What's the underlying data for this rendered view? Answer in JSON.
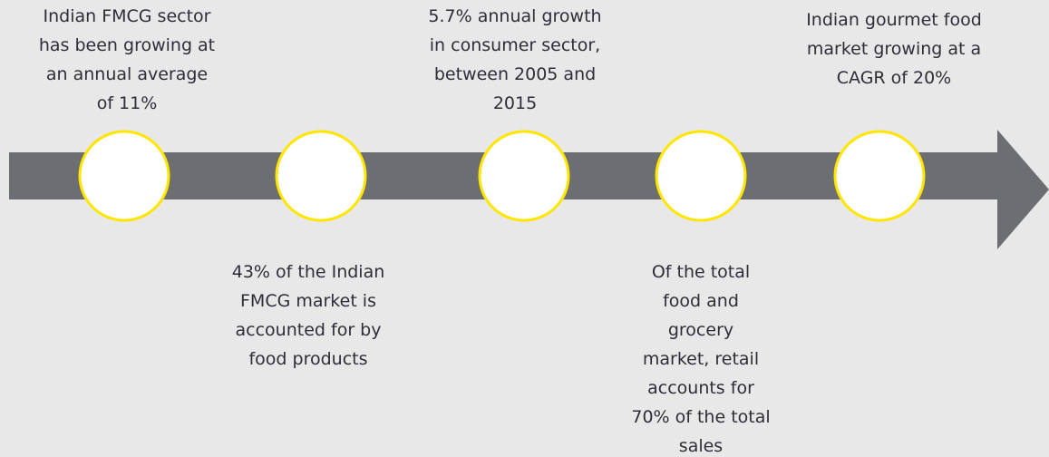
{
  "items": [
    {
      "lines": [
        "Indian FMCG sector",
        "has been growing at",
        "an annual average",
        "of 11%"
      ],
      "position": "above"
    },
    {
      "lines": [
        "43% of the Indian",
        "FMCG market is",
        "accounted for by",
        "food products"
      ],
      "position": "below"
    },
    {
      "lines": [
        "5.7% annual growth",
        "in consumer sector,",
        "between 2005 and",
        "2015"
      ],
      "position": "above"
    },
    {
      "lines": [
        "Of the total",
        "food and",
        "grocery",
        "market, retail",
        "accounts for",
        "70% of the total",
        "sales"
      ],
      "position": "below"
    },
    {
      "lines": [
        "Indian gourmet food",
        "market growing at a",
        "CAGR of 20%"
      ],
      "position": "above"
    }
  ]
}
